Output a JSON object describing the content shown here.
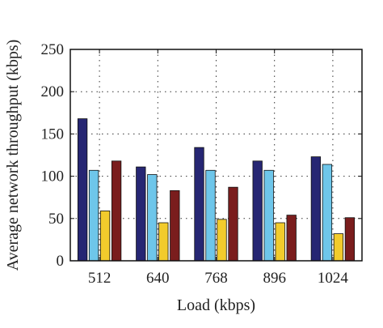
{
  "chart_data": {
    "type": "bar",
    "xlabel": "Load (kbps)",
    "ylabel": "Average network throughput (kbps)",
    "categories": [
      "512",
      "640",
      "768",
      "896",
      "1024"
    ],
    "ylim": [
      0,
      250
    ],
    "yticks": [
      0,
      50,
      100,
      150,
      200,
      250
    ],
    "grid": true,
    "series": [
      {
        "color": "#262673",
        "values": [
          168,
          111,
          134,
          118,
          123
        ]
      },
      {
        "color": "#6ec6ea",
        "values": [
          107,
          102,
          107,
          107,
          114
        ]
      },
      {
        "color": "#f2cb2c",
        "values": [
          59,
          45,
          49,
          45,
          32
        ]
      },
      {
        "color": "#7a1d1d",
        "values": [
          118,
          83,
          87,
          54,
          51
        ]
      }
    ]
  }
}
